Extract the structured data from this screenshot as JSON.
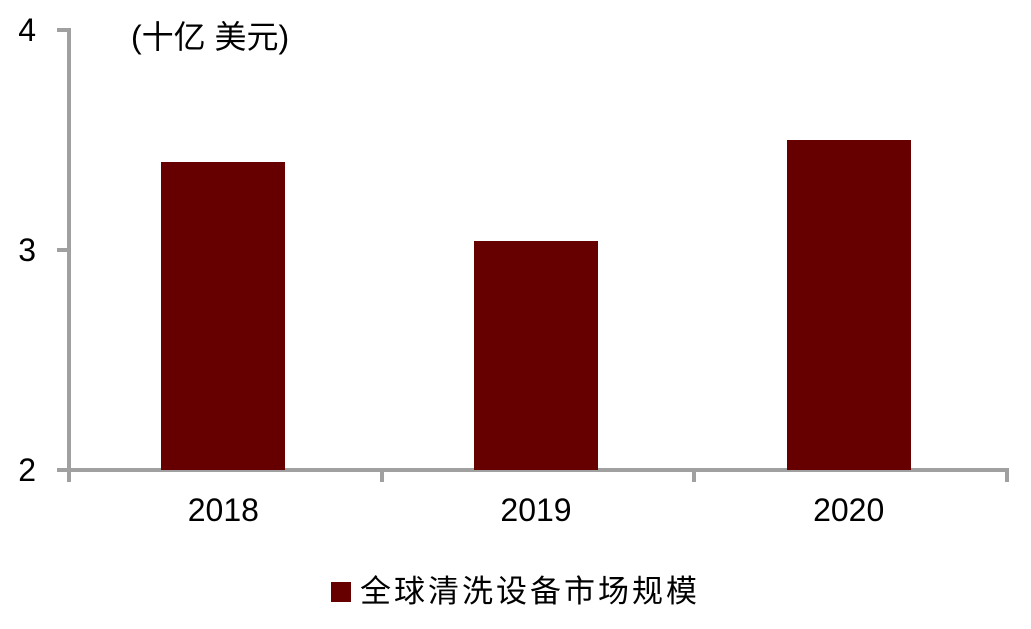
{
  "chart_data": {
    "type": "bar",
    "title": "",
    "unit_label": "(十亿 美元)",
    "categories": [
      "2018",
      "2019",
      "2020"
    ],
    "series": [
      {
        "name": "全球清洗设备市场规模",
        "values": [
          3.4,
          3.04,
          3.5
        ],
        "color": "#660000"
      }
    ],
    "xlabel": "",
    "ylabel": "(十亿 美元)",
    "ylim": [
      2,
      4
    ],
    "yticks": [
      2,
      3,
      4
    ],
    "grid": false,
    "legend_position": "bottom",
    "colors": {
      "bar": "#660000",
      "axis": "#A0A0A0",
      "text": "#000000",
      "background": "#FFFFFF"
    }
  }
}
